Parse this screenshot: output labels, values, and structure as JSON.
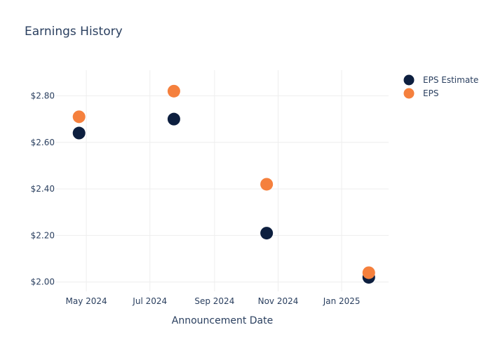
{
  "chart_data": {
    "type": "scatter",
    "title": "Earnings History",
    "xlabel": "Announcement Date",
    "ylabel": "",
    "x_ticks": [
      {
        "date": "2024-05-01",
        "label": "May 2024"
      },
      {
        "date": "2024-07-01",
        "label": "Jul 2024"
      },
      {
        "date": "2024-09-01",
        "label": "Sep 2024"
      },
      {
        "date": "2024-11-01",
        "label": "Nov 2024"
      },
      {
        "date": "2025-01-01",
        "label": "Jan 2025"
      }
    ],
    "y_ticks": [
      {
        "value": 2.0,
        "label": "$2.00"
      },
      {
        "value": 2.2,
        "label": "$2.20"
      },
      {
        "value": 2.4,
        "label": "$2.40"
      },
      {
        "value": 2.6,
        "label": "$2.60"
      },
      {
        "value": 2.8,
        "label": "$2.80"
      }
    ],
    "xlim": [
      "2024-04-02",
      "2025-02-15"
    ],
    "ylim": [
      1.96,
      2.91
    ],
    "grid": true,
    "legend_position": "top-right",
    "series": [
      {
        "name": "EPS Estimate",
        "color": "#0d1f3f",
        "points": [
          {
            "x": "2024-04-24",
            "y": 2.64
          },
          {
            "x": "2024-07-24",
            "y": 2.7
          },
          {
            "x": "2024-10-21",
            "y": 2.21
          },
          {
            "x": "2025-01-27",
            "y": 2.02
          }
        ]
      },
      {
        "name": "EPS",
        "color": "#f5803d",
        "points": [
          {
            "x": "2024-04-24",
            "y": 2.71
          },
          {
            "x": "2024-07-24",
            "y": 2.82
          },
          {
            "x": "2024-10-21",
            "y": 2.42
          },
          {
            "x": "2025-01-27",
            "y": 2.04
          }
        ]
      }
    ]
  }
}
